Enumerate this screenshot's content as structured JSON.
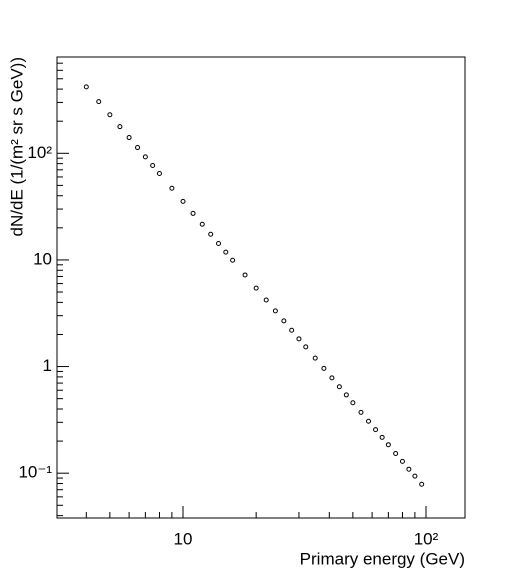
{
  "chart_data": {
    "type": "scatter",
    "x_label": "Primary energy (GeV)",
    "y_label": "dN/dE (1/(m² sr s GeV))",
    "log_x": true,
    "log_y": true,
    "color": "#000000",
    "xlim": [
      3.03,
      144.7
    ],
    "ylim": [
      0.038,
      800
    ],
    "xticks": [
      10,
      {
        "value": 100,
        "label": "10²"
      }
    ],
    "yticks": [
      {
        "value": 0.1,
        "label": "10⁻¹"
      },
      1,
      10,
      {
        "value": 100,
        "label": "10²"
      }
    ],
    "xminorticks": [
      4,
      5,
      6,
      7,
      8,
      9,
      20,
      30,
      40,
      50,
      60,
      70,
      80,
      90
    ],
    "yminorticks": [
      0.04,
      0.05,
      0.06,
      0.07,
      0.08,
      0.09,
      0.2,
      0.3,
      0.4,
      0.5,
      0.6,
      0.7,
      0.8,
      0.9,
      2,
      3,
      4,
      5,
      6,
      7,
      8,
      9,
      20,
      30,
      40,
      50,
      60,
      70,
      80,
      90,
      200,
      300,
      400,
      500,
      600,
      700
    ],
    "x": [
      4,
      4.5,
      5,
      5.5,
      6,
      6.5,
      7,
      7.5,
      8,
      9,
      10,
      11,
      12,
      13,
      14,
      15,
      16,
      18,
      20,
      22,
      24,
      26,
      28,
      30,
      32,
      35,
      38,
      41,
      44,
      47,
      50,
      54,
      58,
      62,
      66,
      70,
      75,
      80,
      85,
      90,
      96
    ],
    "values": [
      420,
      305.5,
      229.7,
      177.7,
      140.5,
      113.2,
      92.6,
      76.9,
      64.6,
      47.0,
      35.4,
      27.3,
      21.6,
      17.41,
      14.25,
      11.83,
      9.94,
      7.23,
      5.44,
      4.21,
      3.33,
      2.68,
      2.19,
      1.82,
      1.53,
      1.2,
      0.962,
      0.783,
      0.647,
      0.542,
      0.458,
      0.372,
      0.307,
      0.256,
      0.217,
      0.185,
      0.153,
      0.129,
      0.109,
      0.0938,
      0.0788
    ]
  }
}
